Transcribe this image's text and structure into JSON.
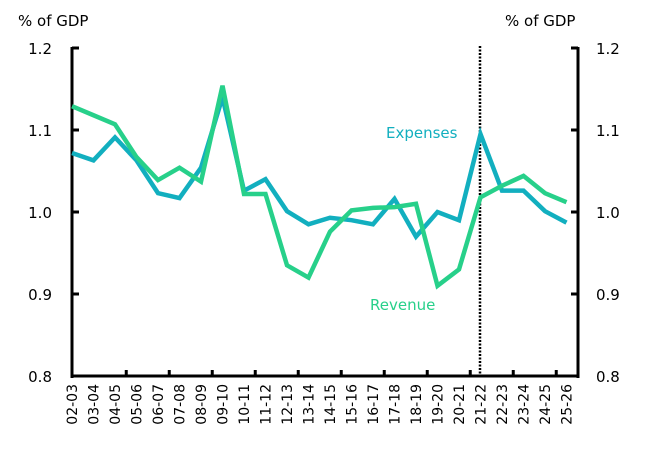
{
  "chart_data": {
    "type": "line",
    "title": "",
    "xlabel": "",
    "ylabel_left": "% of GDP",
    "ylabel_right": "% of GDP",
    "ylim": [
      0.8,
      1.2
    ],
    "yticks": [
      0.8,
      0.9,
      1.0,
      1.1,
      1.2
    ],
    "ytick_labels": [
      "0.8",
      "0.9",
      "1.0",
      "1.1",
      "1.2"
    ],
    "grid": false,
    "legend": "inline labels",
    "categories": [
      "02-03",
      "03-04",
      "04-05",
      "05-06",
      "06-07",
      "07-08",
      "08-09",
      "09-10",
      "10-11",
      "11-12",
      "12-13",
      "13-14",
      "14-15",
      "15-16",
      "16-17",
      "17-18",
      "18-19",
      "19-20",
      "20-21",
      "21-22",
      "22-23",
      "23-24",
      "24-25",
      "25-26"
    ],
    "vertical_marker": {
      "category": "21-22",
      "style": "dotted",
      "color": "#000000"
    },
    "series": [
      {
        "name": "Expenses",
        "color": "#12AFBF",
        "label_position": "above 20-21",
        "values": [
          1.072,
          1.063,
          1.091,
          1.063,
          1.023,
          1.017,
          1.054,
          1.14,
          1.026,
          1.04,
          1.001,
          0.985,
          0.993,
          0.99,
          0.985,
          1.016,
          0.97,
          1.0,
          0.99,
          1.095,
          1.026,
          1.026,
          1.001,
          0.987
        ]
      },
      {
        "name": "Revenue",
        "color": "#27D08A",
        "label_position": "below 18-19",
        "values": [
          1.129,
          1.118,
          1.107,
          1.067,
          1.039,
          1.054,
          1.037,
          1.154,
          1.022,
          1.022,
          0.935,
          0.92,
          0.976,
          1.002,
          1.005,
          1.006,
          1.01,
          0.91,
          0.93,
          1.018,
          1.032,
          1.044,
          1.023,
          1.012
        ]
      }
    ]
  }
}
